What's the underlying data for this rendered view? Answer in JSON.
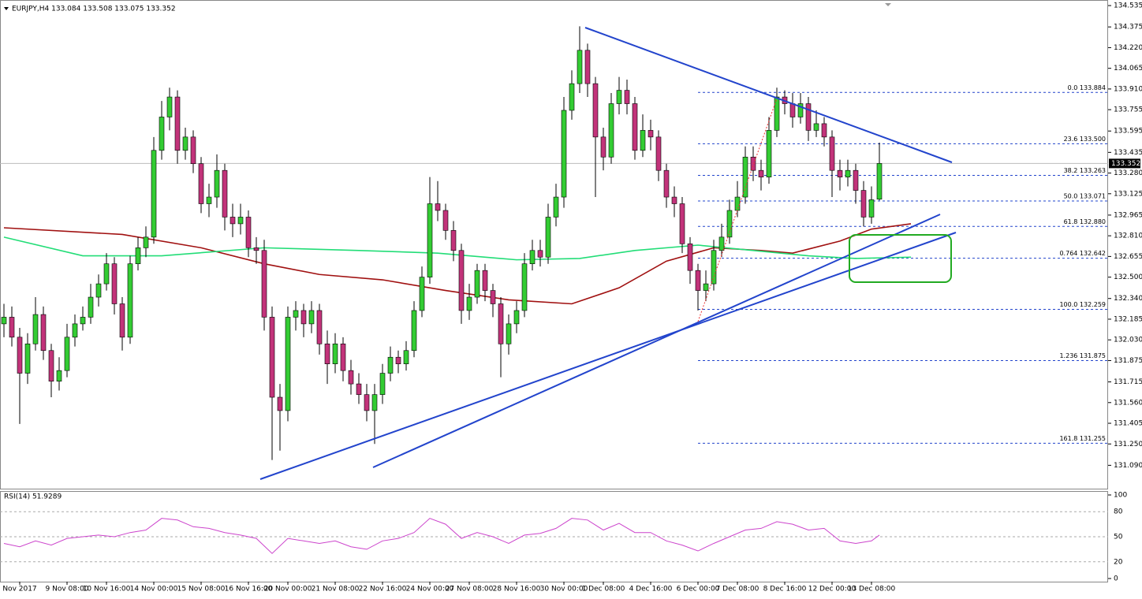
{
  "chart_data": {
    "type": "candlestick",
    "header": "EURJPY,H4  133.084 133.508 133.075 133.352",
    "bull_color": "#33cc33",
    "bear_color": "#c2337a",
    "ylim": [
      130.915,
      134.565
    ],
    "yticks": [
      134.535,
      134.375,
      {
        "value": 134.22,
        "label": "134.220"
      },
      134.065,
      {
        "value": 133.91,
        "label": "133.910"
      },
      133.755,
      133.595,
      133.435,
      {
        "value": 133.28,
        "label": "133.280"
      },
      133.125,
      132.965,
      {
        "value": 132.81,
        "label": "132.810"
      },
      132.655,
      {
        "value": 132.5,
        "label": "132.500"
      },
      {
        "value": 132.34,
        "label": "132.340"
      },
      132.185,
      {
        "value": 132.03,
        "label": "132.030"
      },
      131.875,
      131.715,
      {
        "value": 131.56,
        "label": "131.560"
      },
      131.405,
      {
        "value": 131.25,
        "label": "131.250"
      },
      {
        "value": 131.09,
        "label": "131.090"
      }
    ],
    "last_price": 133.352,
    "categories": [
      null,
      null,
      "Nov 2017",
      null,
      null,
      null,
      null,
      null,
      "9 Nov 08:00",
      null,
      null,
      null,
      null,
      "10 Nov 16:00",
      null,
      null,
      null,
      null,
      null,
      "14 Nov 00:00",
      null,
      null,
      null,
      null,
      null,
      "15 Nov 08:00",
      null,
      null,
      null,
      null,
      null,
      "16 Nov 16:00",
      null,
      null,
      null,
      null,
      "20 Nov 00:00",
      null,
      null,
      null,
      null,
      null,
      "21 Nov 08:00",
      null,
      null,
      null,
      null,
      null,
      "22 Nov 16:00",
      null,
      null,
      null,
      null,
      null,
      "24 Nov 00:00",
      null,
      null,
      null,
      null,
      "27 Nov 08:00",
      null,
      null,
      null,
      null,
      null,
      "28 Nov 16:00",
      null,
      null,
      null,
      null,
      null,
      "30 Nov 00:00",
      null,
      null,
      null,
      null,
      "1 Dec 08:00",
      null,
      null,
      null,
      null,
      null,
      "4 Dec 16:00",
      null,
      null,
      null,
      null,
      null,
      "6 Dec 00:00",
      null,
      null,
      null,
      null,
      "7 Dec 08:00",
      null,
      null,
      null,
      null,
      null,
      "8 Dec 16:00",
      null,
      null,
      null,
      null,
      null,
      "12 Dec 00:00",
      null,
      null,
      null,
      null,
      "13 Dec 08:00",
      null
    ],
    "open": [
      132.15,
      132.2,
      132.05,
      131.78,
      132.0,
      132.22,
      131.95,
      131.72,
      131.8,
      132.05,
      132.15,
      132.2,
      132.35,
      132.45,
      132.6,
      132.3,
      132.05,
      132.6,
      132.72,
      132.8,
      133.45,
      133.7,
      133.85,
      133.45,
      133.55,
      133.35,
      133.05,
      133.1,
      133.3,
      132.95,
      132.9,
      132.95,
      132.72,
      132.7,
      132.2,
      131.6,
      131.5,
      132.2,
      132.25,
      132.15,
      132.25,
      132.0,
      131.85,
      132.0,
      131.8,
      131.7,
      131.62,
      131.5,
      131.62,
      131.78,
      131.9,
      131.85,
      131.95,
      132.25,
      132.5,
      133.05,
      133.0,
      132.85,
      132.7,
      132.25,
      132.35,
      132.55,
      132.4,
      132.3,
      132.0,
      132.15,
      132.25,
      132.6,
      132.7,
      132.65,
      132.95,
      133.1,
      133.75,
      133.95,
      134.2,
      133.95,
      133.55,
      133.4,
      133.8,
      133.9,
      133.8,
      133.45,
      133.6,
      133.55,
      133.3,
      133.1,
      133.05,
      132.75,
      132.55,
      132.4,
      132.45,
      132.7,
      132.8,
      133.0,
      133.1,
      133.4,
      133.3,
      133.25,
      133.6,
      133.85,
      133.8,
      133.7,
      133.8,
      133.6,
      133.65,
      133.55,
      133.3,
      133.25,
      133.3,
      133.15,
      132.95,
      133.084
    ],
    "high": [
      132.3,
      132.28,
      132.12,
      132.08,
      132.35,
      132.28,
      132.0,
      131.9,
      132.15,
      132.22,
      132.28,
      132.45,
      132.52,
      132.68,
      132.65,
      132.35,
      132.66,
      132.8,
      132.88,
      133.55,
      133.82,
      133.92,
      133.9,
      133.62,
      133.6,
      133.4,
      133.2,
      133.42,
      133.35,
      133.05,
      133.05,
      133.0,
      132.8,
      132.78,
      132.28,
      131.7,
      132.28,
      132.32,
      132.3,
      132.32,
      132.3,
      132.1,
      132.08,
      132.05,
      131.88,
      131.78,
      131.7,
      131.7,
      131.85,
      131.98,
      131.95,
      132.02,
      132.32,
      132.58,
      133.25,
      133.22,
      133.05,
      132.92,
      132.75,
      132.45,
      132.6,
      132.6,
      132.45,
      132.35,
      132.22,
      132.32,
      132.68,
      132.78,
      132.78,
      133.05,
      133.2,
      133.85,
      134.05,
      134.38,
      134.25,
      134.0,
      133.62,
      133.88,
      134.0,
      133.98,
      133.85,
      133.72,
      133.68,
      133.6,
      133.35,
      133.18,
      133.1,
      132.8,
      132.6,
      132.55,
      132.78,
      132.9,
      133.08,
      133.22,
      133.48,
      133.48,
      133.38,
      133.7,
      133.92,
      133.9,
      133.88,
      133.88,
      133.85,
      133.75,
      133.7,
      133.6,
      133.38,
      133.38,
      133.35,
      133.22,
      133.18,
      133.508
    ],
    "low": [
      132.05,
      131.98,
      131.4,
      131.7,
      131.95,
      131.88,
      131.6,
      131.65,
      131.75,
      131.98,
      132.1,
      132.15,
      132.28,
      132.4,
      132.22,
      131.95,
      132.0,
      132.55,
      132.65,
      132.75,
      133.38,
      133.6,
      133.35,
      133.38,
      133.28,
      132.98,
      132.95,
      133.02,
      132.85,
      132.8,
      132.82,
      132.65,
      132.6,
      132.1,
      131.13,
      131.2,
      131.42,
      132.1,
      132.05,
      132.08,
      131.92,
      131.7,
      131.78,
      131.72,
      131.62,
      131.55,
      131.42,
      131.25,
      131.55,
      131.72,
      131.78,
      131.8,
      131.9,
      132.2,
      132.45,
      132.92,
      132.78,
      132.62,
      132.15,
      132.18,
      132.3,
      132.32,
      132.2,
      131.75,
      131.92,
      132.08,
      132.2,
      132.55,
      132.58,
      132.6,
      132.88,
      133.02,
      133.68,
      133.88,
      133.85,
      133.1,
      133.3,
      133.35,
      133.72,
      133.72,
      133.38,
      133.4,
      133.45,
      133.22,
      133.02,
      132.95,
      132.68,
      132.45,
      132.25,
      132.32,
      132.4,
      132.65,
      132.75,
      132.95,
      133.05,
      133.22,
      133.15,
      133.2,
      133.55,
      133.72,
      133.62,
      133.65,
      133.52,
      133.55,
      133.48,
      133.1,
      133.15,
      133.18,
      133.05,
      132.88,
      132.9,
      133.075
    ],
    "close": [
      132.2,
      132.05,
      131.78,
      132.0,
      132.22,
      131.95,
      131.72,
      131.8,
      132.05,
      132.15,
      132.2,
      132.35,
      132.45,
      132.6,
      132.3,
      132.05,
      132.6,
      132.72,
      132.8,
      133.45,
      133.7,
      133.85,
      133.45,
      133.55,
      133.35,
      133.05,
      133.1,
      133.3,
      132.95,
      132.9,
      132.95,
      132.72,
      132.7,
      132.2,
      131.6,
      131.5,
      132.2,
      132.25,
      132.15,
      132.25,
      132.0,
      131.85,
      132.0,
      131.8,
      131.7,
      131.62,
      131.5,
      131.62,
      131.78,
      131.9,
      131.85,
      131.95,
      132.25,
      132.5,
      133.05,
      133.0,
      132.85,
      132.7,
      132.25,
      132.35,
      132.55,
      132.4,
      132.3,
      132.0,
      132.15,
      132.25,
      132.6,
      132.7,
      132.65,
      132.95,
      133.1,
      133.75,
      133.95,
      134.2,
      133.95,
      133.55,
      133.4,
      133.8,
      133.9,
      133.8,
      133.45,
      133.6,
      133.55,
      133.3,
      133.1,
      133.05,
      132.75,
      132.55,
      132.4,
      132.45,
      132.7,
      132.8,
      133.0,
      133.1,
      133.4,
      133.3,
      133.25,
      133.6,
      133.85,
      133.8,
      133.7,
      133.8,
      133.6,
      133.65,
      133.55,
      133.3,
      133.25,
      133.3,
      133.15,
      132.95,
      133.08,
      133.352
    ],
    "overlays": [
      {
        "color": "#a01010",
        "x": [
          0,
          15,
          25,
          33,
          40,
          48,
          56,
          64,
          72,
          78,
          84,
          90,
          96,
          100,
          106,
          110,
          115
        ],
        "values": [
          132.87,
          132.82,
          132.72,
          132.6,
          132.52,
          132.48,
          132.4,
          132.33,
          132.3,
          132.42,
          132.62,
          132.72,
          132.7,
          132.68,
          132.77,
          132.86,
          132.9
        ]
      },
      {
        "color": "#22dd77",
        "x": [
          0,
          10,
          20,
          33,
          45,
          55,
          65,
          73,
          80,
          88,
          95,
          102,
          108,
          115
        ],
        "values": [
          132.8,
          132.66,
          132.66,
          132.72,
          132.7,
          132.68,
          132.63,
          132.64,
          132.7,
          132.74,
          132.7,
          132.66,
          132.64,
          132.65
        ]
      }
    ],
    "fib_levels": [
      {
        "value": 133.884,
        "label": "0.0 133.884"
      },
      {
        "value": 133.5,
        "label": "23.6 133.500"
      },
      {
        "value": 133.263,
        "label": "38.2 133.263"
      },
      {
        "value": 133.071,
        "label": "50.0 133.071"
      },
      {
        "value": 132.88,
        "label": "61.8 132.880"
      },
      {
        "value": 132.642,
        "label": "0.764 132.642"
      },
      {
        "value": 132.259,
        "label": "100.0 132.259"
      },
      {
        "value": 131.875,
        "label": "1.236 131.875"
      },
      {
        "value": 131.255,
        "label": "161.8 131.255"
      }
    ],
    "rsi": {
      "label": "RSI(14) 51.9289",
      "color": "#cc44cc",
      "ylim": [
        0,
        100
      ],
      "yticks": [
        100,
        80,
        50,
        20,
        0
      ],
      "x": [
        0,
        2,
        4,
        6,
        8,
        10,
        12,
        14,
        16,
        18,
        20,
        22,
        24,
        26,
        28,
        30,
        32,
        34,
        36,
        38,
        40,
        42,
        44,
        46,
        48,
        50,
        52,
        54,
        56,
        58,
        60,
        62,
        64,
        66,
        68,
        70,
        72,
        74,
        76,
        78,
        80,
        82,
        84,
        86,
        88,
        90,
        92,
        94,
        96,
        98,
        100,
        102,
        104,
        106,
        108,
        110,
        111
      ],
      "values": [
        42,
        38,
        45,
        40,
        48,
        50,
        52,
        50,
        55,
        58,
        72,
        70,
        62,
        60,
        55,
        52,
        48,
        30,
        48,
        45,
        42,
        45,
        38,
        35,
        45,
        48,
        55,
        72,
        65,
        48,
        55,
        50,
        42,
        52,
        54,
        60,
        72,
        70,
        58,
        66,
        55,
        55,
        45,
        40,
        33,
        42,
        50,
        58,
        60,
        68,
        65,
        58,
        60,
        45,
        42,
        45,
        51.9289
      ]
    }
  }
}
